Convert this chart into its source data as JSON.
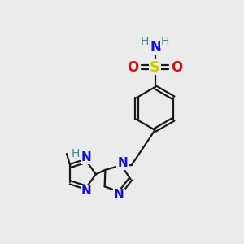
{
  "bg_color": "#ebebeb",
  "bond_color": "#1a1a1a",
  "N_color": "#1414cc",
  "O_color": "#cc1414",
  "S_color": "#cccc00",
  "H_color": "#3a8a8a",
  "figsize": [
    3.0,
    3.0
  ],
  "dpi": 100,
  "xlim": [
    0,
    10
  ],
  "ylim": [
    0,
    10
  ]
}
